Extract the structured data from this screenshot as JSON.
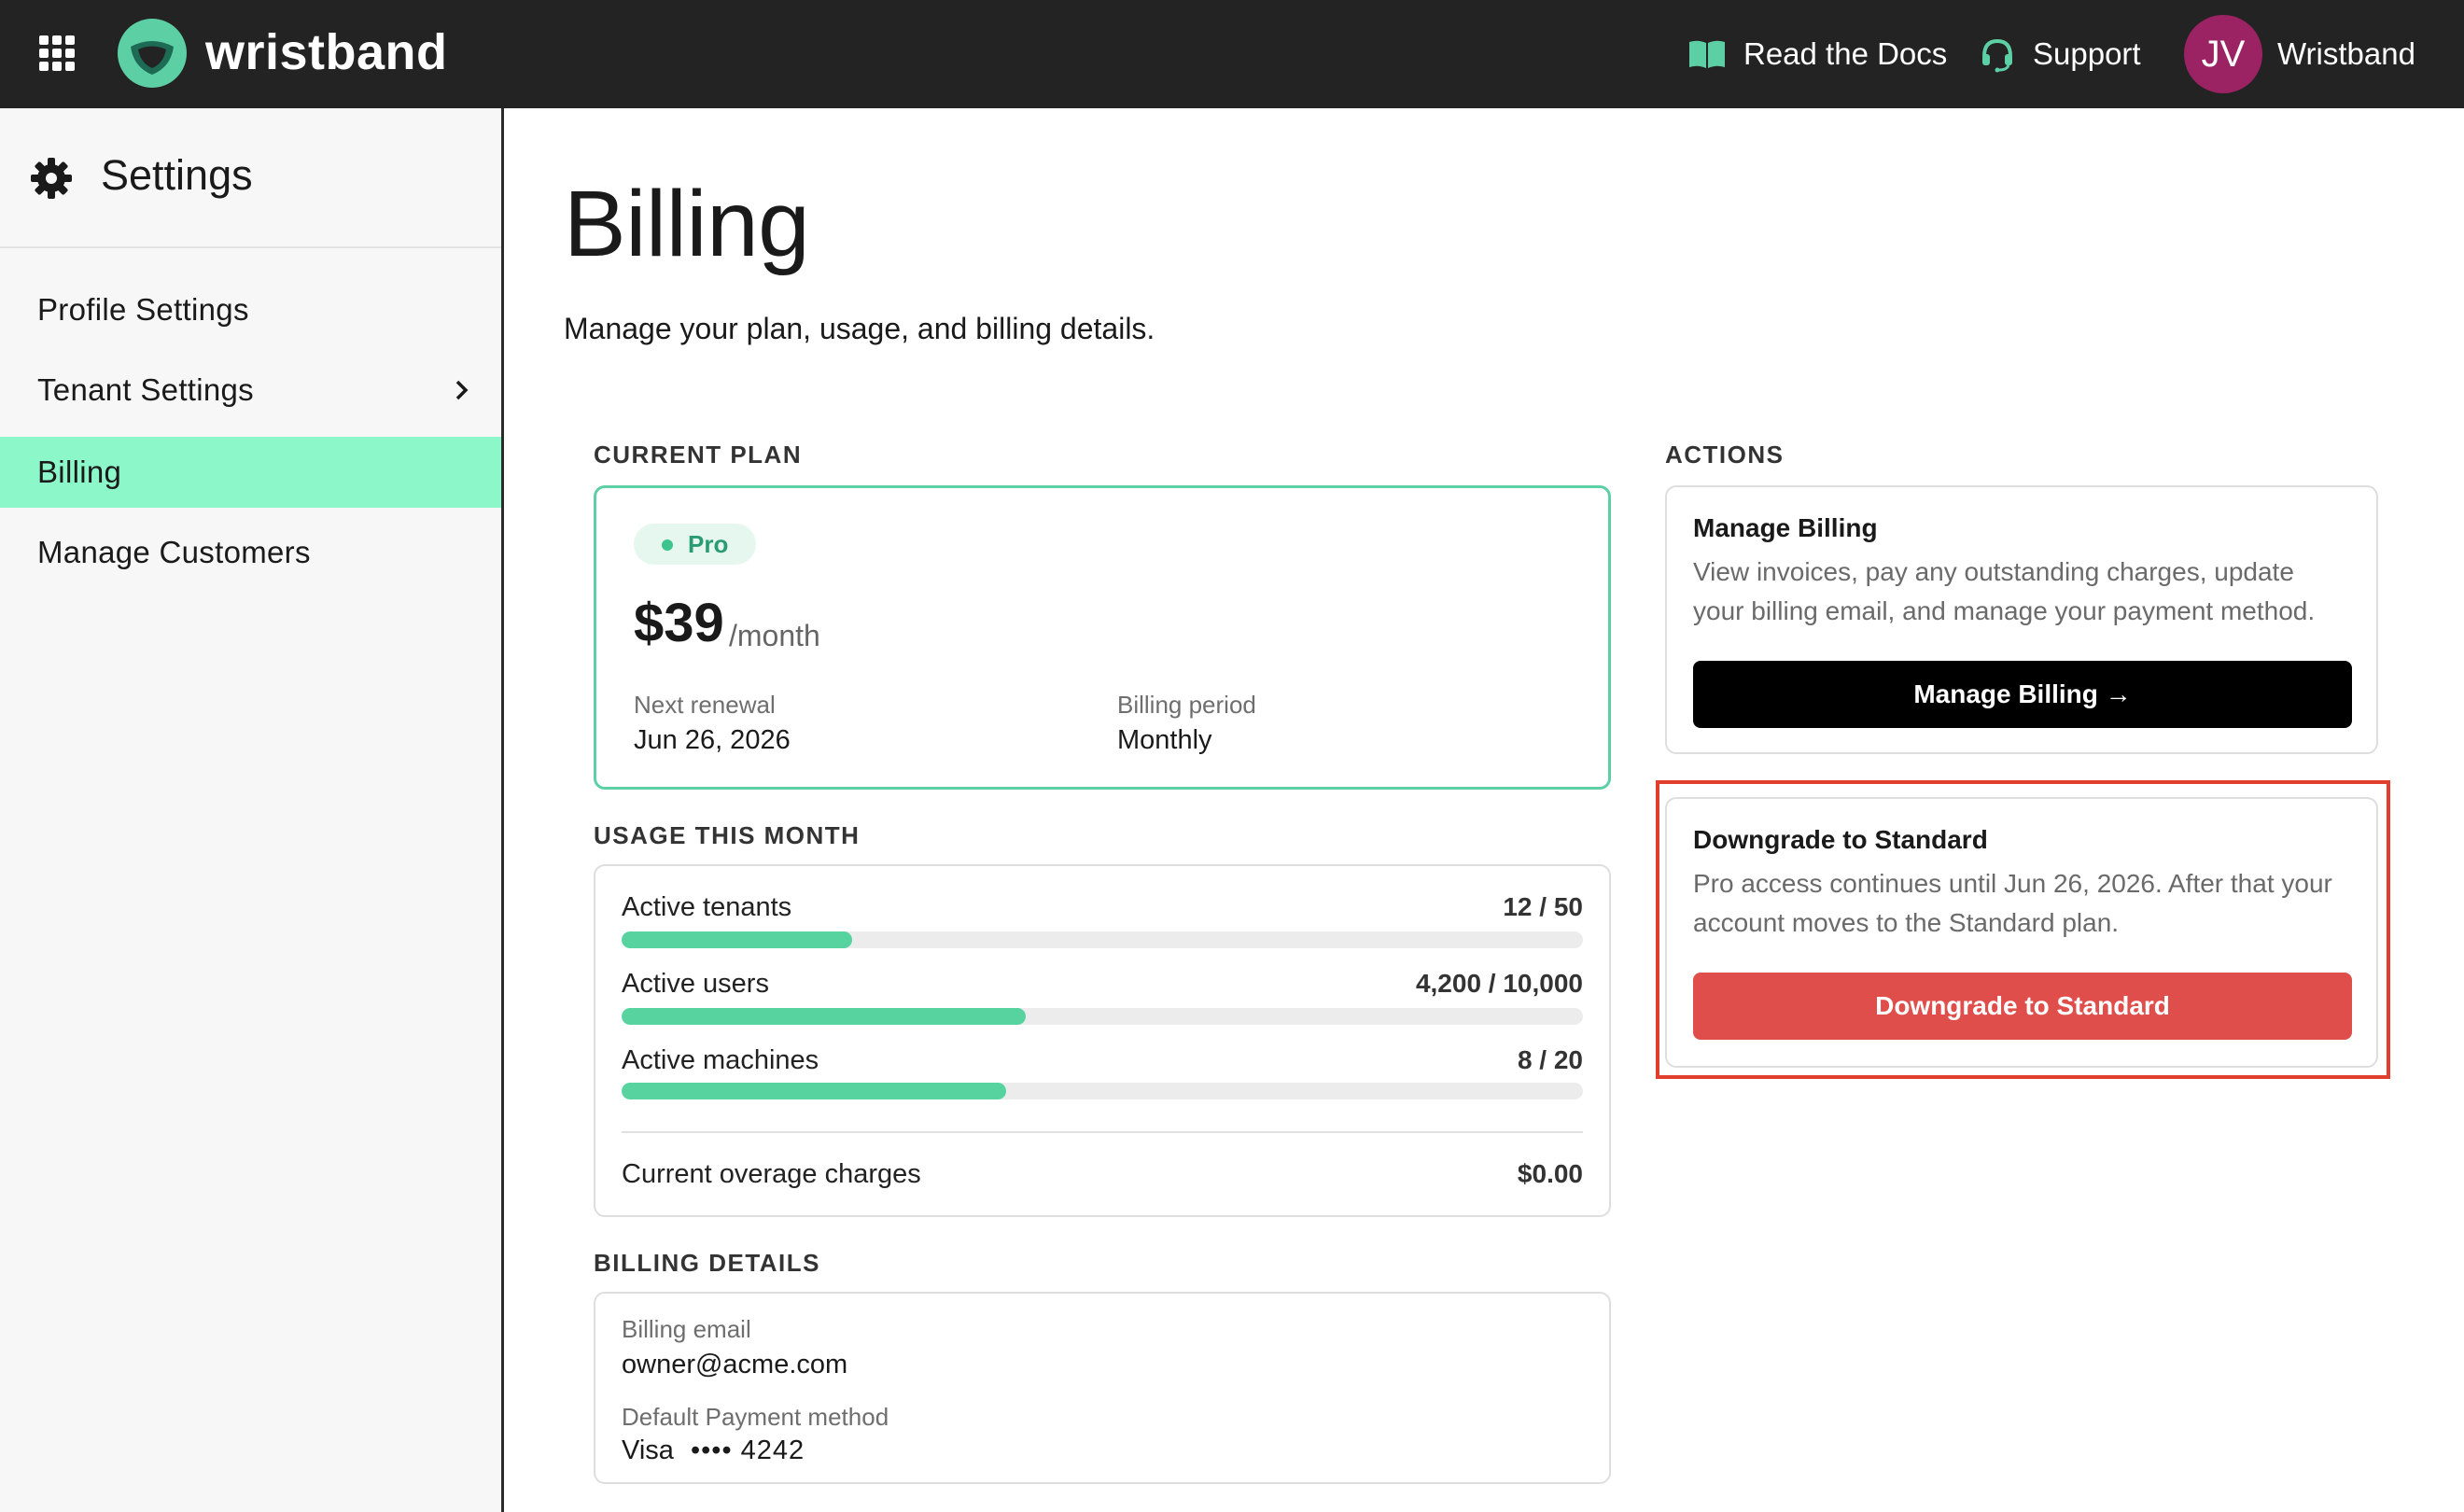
{
  "topbar": {
    "brand": "wristband",
    "docs_label": "Read the Docs",
    "support_label": "Support",
    "avatar_initials": "JV",
    "account_name": "Wristband",
    "brand_color": "#5dcfa4",
    "avatar_color": "#9b2363"
  },
  "sidebar": {
    "title": "Settings",
    "items": [
      {
        "label": "Profile Settings"
      },
      {
        "label": "Tenant Settings"
      },
      {
        "label": "Billing"
      },
      {
        "label": "Manage Customers"
      }
    ],
    "active_color": "#8cf7c9"
  },
  "main": {
    "title": "Billing",
    "subtitle": "Manage your plan, usage, and billing details."
  },
  "current_plan": {
    "section_label": "CURRENT PLAN",
    "plan_name": "Pro",
    "price": "$39",
    "price_unit": "/month",
    "renewal_label": "Next renewal",
    "renewal_value": "Jun 26, 2026",
    "period_label": "Billing period",
    "period_value": "Monthly"
  },
  "usage": {
    "section_label": "USAGE THIS MONTH",
    "rows": [
      {
        "label": "Active tenants",
        "value": "12 / 50",
        "fraction": 0.24
      },
      {
        "label": "Active users",
        "value": "4,200 / 10,000",
        "fraction": 0.42
      },
      {
        "label": "Active machines",
        "value": "8 / 20",
        "fraction": 0.4
      }
    ],
    "overage_label": "Current overage charges",
    "overage_value": "$0.00"
  },
  "billing_details": {
    "section_label": "BILLING DETAILS",
    "email_label": "Billing email",
    "email_value": "owner@acme.com",
    "payment_label": "Default Payment method",
    "payment_brand": "Visa",
    "payment_mask": "•••• 4242"
  },
  "actions": {
    "section_label": "ACTIONS",
    "manage": {
      "title": "Manage Billing",
      "description": "View invoices, pay any outstanding charges, update your billing email, and manage your payment method.",
      "button_label": "Manage Billing →"
    },
    "downgrade": {
      "title": "Downgrade to Standard",
      "description": "Pro access continues until Jun 26, 2026. After that your account moves to the Standard plan.",
      "button_label": "Downgrade to Standard",
      "button_color": "#e04e4b",
      "highlight_color": "#e23e2e"
    }
  },
  "icons": {
    "apps": "grid-icon",
    "logo": "wristband-logo-icon",
    "docs": "book-icon",
    "support": "headset-icon",
    "settings": "gear-icon",
    "expand": "chevron-right-icon"
  }
}
